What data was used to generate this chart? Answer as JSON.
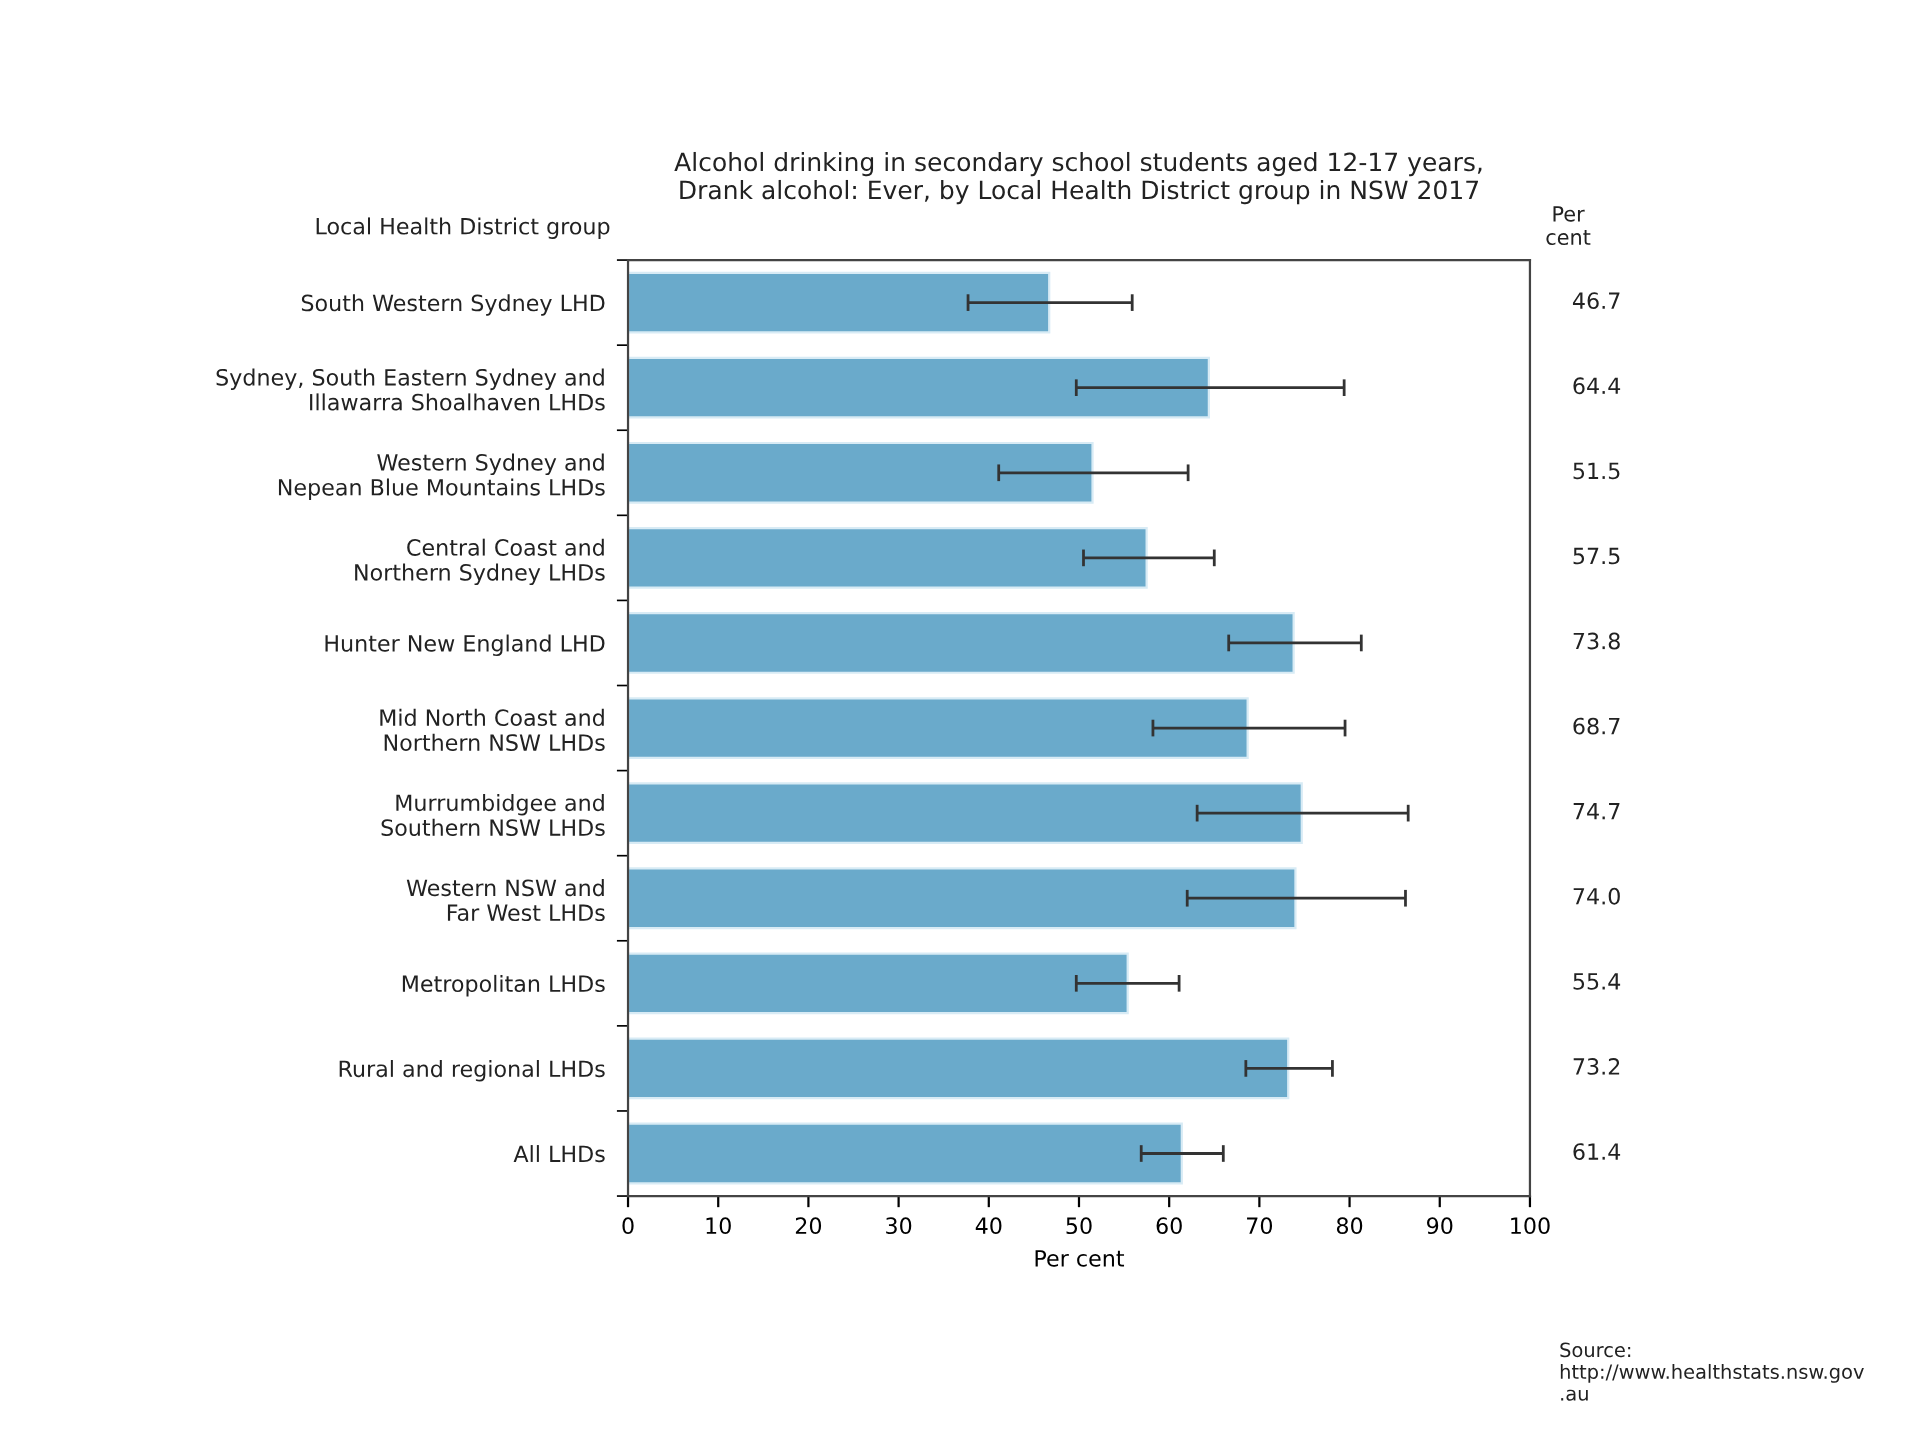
{
  "chart_data": {
    "type": "bar",
    "orientation": "horizontal",
    "title": "Alcohol drinking in secondary school students aged 12-17 years,\nDrank alcohol: Ever, by Local Health District group in NSW 2017",
    "ylabel": "Local Health District group",
    "xlabel": "Per cent",
    "categories": [
      "South Western Sydney LHD",
      "Sydney, South Eastern Sydney and\nIllawarra Shoalhaven LHDs",
      "Western Sydney and\nNepean Blue Mountains LHDs",
      "Central Coast and\nNorthern Sydney LHDs",
      "Hunter New England LHD",
      "Mid North Coast and\nNorthern NSW LHDs",
      "Murrumbidgee and\nSouthern NSW LHDs",
      "Western NSW and\nFar West LHDs",
      "Metropolitan LHDs",
      "Rural and regional LHDs",
      "All LHDs"
    ],
    "values": [
      46.7,
      64.4,
      51.5,
      57.5,
      73.8,
      68.7,
      74.7,
      74.0,
      55.4,
      73.2,
      61.4
    ],
    "value_labels": [
      "46.7",
      "64.4",
      "51.5",
      "57.5",
      "73.8",
      "68.7",
      "74.7",
      "74.0",
      "55.4",
      "73.2",
      "61.4"
    ],
    "errors": [
      [
        37.7,
        55.9
      ],
      [
        49.7,
        79.4
      ],
      [
        41.1,
        62.1
      ],
      [
        50.5,
        65.0
      ],
      [
        66.6,
        81.3
      ],
      [
        58.2,
        79.5
      ],
      [
        63.1,
        86.5
      ],
      [
        62.0,
        86.2
      ],
      [
        49.7,
        61.1
      ],
      [
        68.5,
        78.1
      ],
      [
        56.9,
        66.0
      ]
    ],
    "color": "#6aaacb",
    "xlim": [
      0,
      100
    ],
    "xticks": [
      0,
      10,
      20,
      30,
      40,
      50,
      60,
      70,
      80,
      90,
      100
    ],
    "grid": false,
    "legend": false,
    "annotations": [
      "Per\ncent",
      "Source:\nhttp://www.healthstats.nsw.gov\n.au"
    ]
  }
}
